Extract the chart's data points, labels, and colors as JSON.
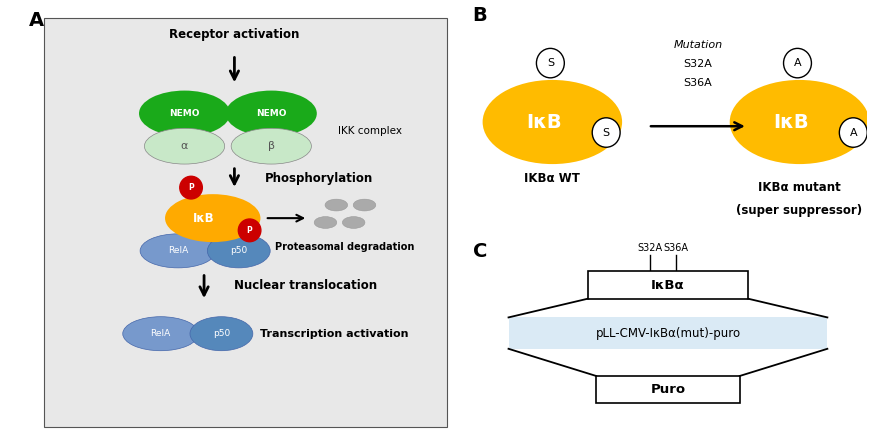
{
  "panel_A": {
    "bg_color": "#e8e8e8",
    "label": "A",
    "receptor_activation_text": "Receptor activation",
    "nemo_color": "#1aaa1a",
    "alpha_beta_color": "#c8e8c8",
    "IKK_complex_text": "IKK complex",
    "phosphorylation_text": "Phosphorylation",
    "ikb_color": "#ffaa00",
    "p_color": "#cc0000",
    "rela_color": "#7799cc",
    "p50_color": "#5588bb",
    "degradation_color": "#aaaaaa",
    "proteasomal_text": "Proteasomal degradation",
    "nuclear_text": "Nuclear translocation",
    "transcription_text": "Transcription activation"
  },
  "panel_B": {
    "label": "B",
    "ikb_color": "#ffbb00",
    "mutation_text_line1": "Mutation",
    "mutation_text_line2": "S32A",
    "mutation_text_line3": "S36A",
    "wt_label": "IKBα WT",
    "mutant_label_line1": "IKBα mutant",
    "mutant_label_line2": "(super suppressor)"
  },
  "panel_C": {
    "label": "C",
    "vector_name": "pLL-CMV-IκBα(mut)-puro",
    "ikba_text": "IκBα",
    "puro_text": "Puro",
    "s32a_text": "S32A",
    "s36a_text": "S36A",
    "vector_bg": "#daeaf5"
  }
}
